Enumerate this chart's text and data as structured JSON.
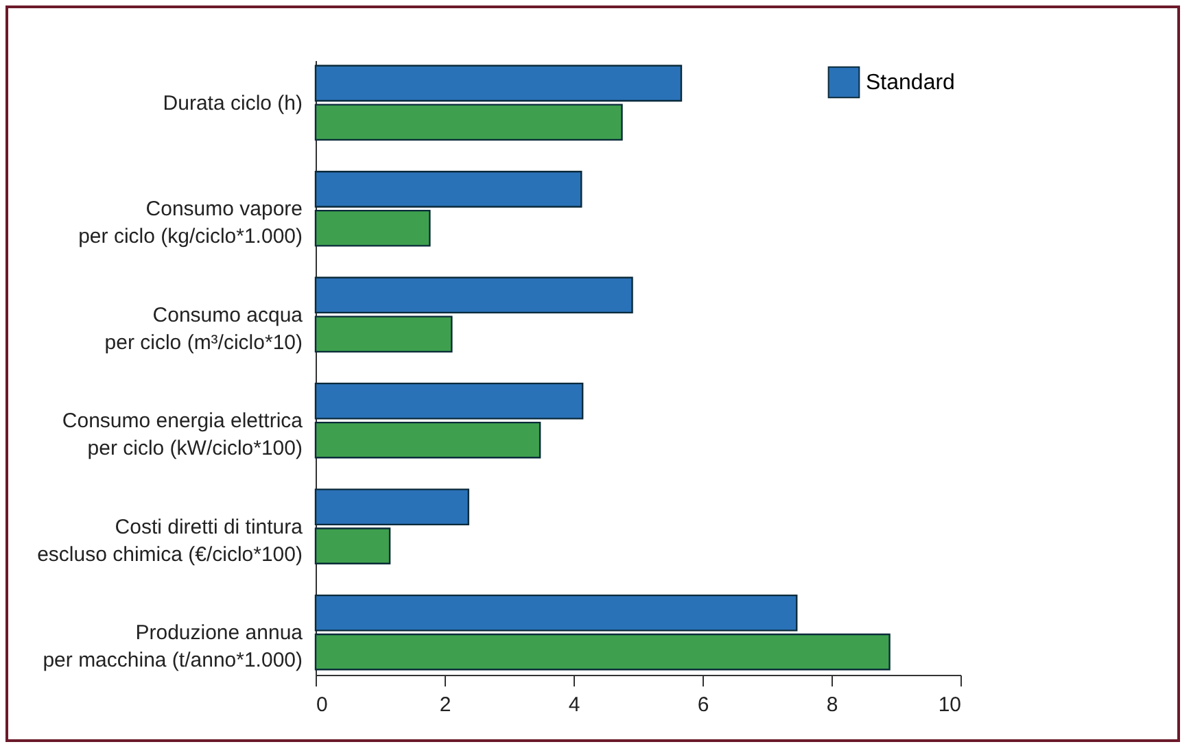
{
  "chart_data": {
    "type": "bar",
    "orientation": "horizontal",
    "categories": [
      "Durata ciclo (h)",
      "Consumo vapore\nper ciclo (kg/ciclo*1.000)",
      "Consumo acqua\nper ciclo (m³/ciclo*10)",
      "Consumo energia elettrica\nper ciclo (kW/ciclo*100)",
      "Costi diretti di tintura\nescluso chimica (€/ciclo*100)",
      "Produzione annua\nper macchina (t/anno*1.000)"
    ],
    "series": [
      {
        "name": "Standard",
        "color": "#2a72b8",
        "values": [
          5.67,
          4.12,
          4.91,
          4.14,
          2.37,
          7.46
        ]
      },
      {
        "color": "#3ea04e",
        "values": [
          4.75,
          1.77,
          2.11,
          3.48,
          1.15,
          8.9
        ]
      }
    ],
    "xlim": [
      0,
      10
    ],
    "xticks": [
      0,
      2,
      4,
      6,
      8,
      10
    ],
    "legend": "top right",
    "grid": false
  }
}
